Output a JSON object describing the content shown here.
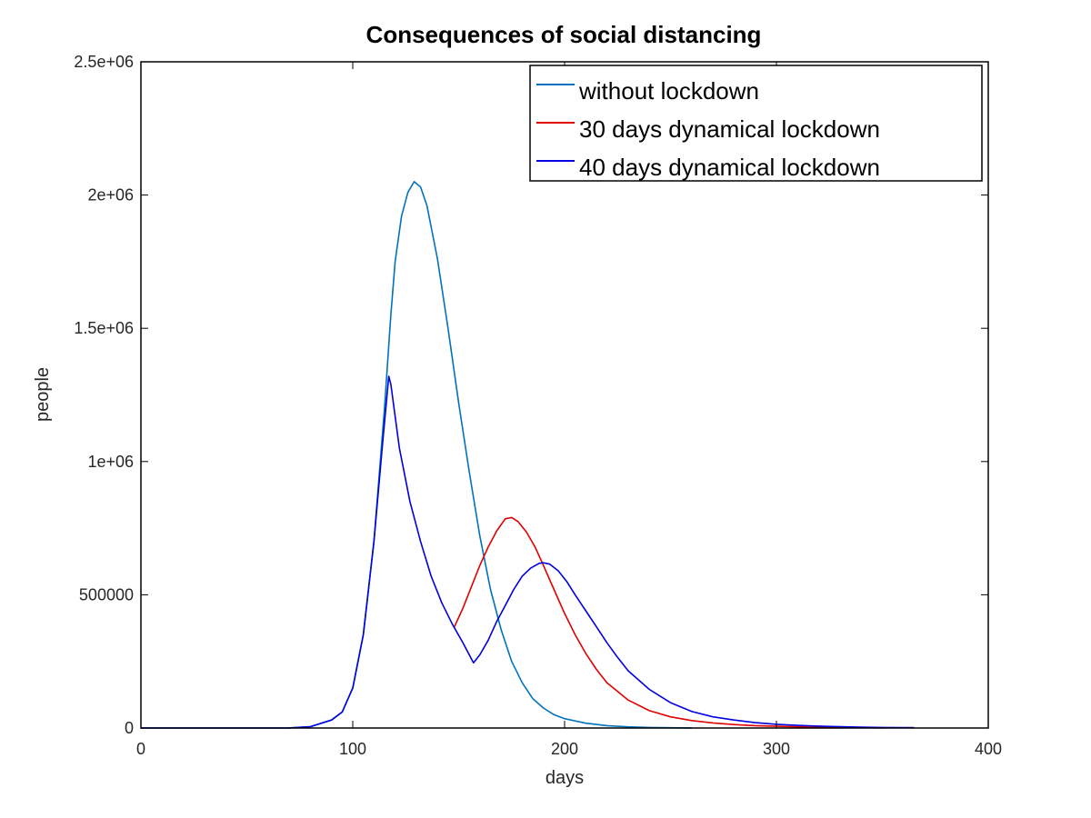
{
  "chart_data": {
    "type": "line",
    "title": "Consequences of social distancing",
    "xlabel": "days",
    "ylabel": "people",
    "xlim": [
      0,
      400
    ],
    "ylim": [
      0,
      2500000
    ],
    "x_ticks": [
      0,
      100,
      200,
      300,
      400
    ],
    "x_tick_labels": [
      "0",
      "100",
      "200",
      "300",
      "400"
    ],
    "y_ticks": [
      0,
      500000,
      1000000,
      1500000,
      2000000,
      2500000
    ],
    "y_tick_labels": [
      "0",
      "500000",
      "1e+06",
      "1.5e+06",
      "2e+06",
      "2.5e+06"
    ],
    "grid": false,
    "legend_position": "top-right",
    "series": [
      {
        "name": "without lockdown",
        "color": "#0072bd",
        "points": [
          [
            0,
            0
          ],
          [
            60,
            0
          ],
          [
            70,
            500
          ],
          [
            80,
            5000
          ],
          [
            90,
            30000
          ],
          [
            95,
            60000
          ],
          [
            100,
            150000
          ],
          [
            105,
            350000
          ],
          [
            110,
            700000
          ],
          [
            115,
            1200000
          ],
          [
            118,
            1550000
          ],
          [
            120,
            1750000
          ],
          [
            123,
            1920000
          ],
          [
            126,
            2010000
          ],
          [
            129,
            2050000
          ],
          [
            132,
            2030000
          ],
          [
            135,
            1960000
          ],
          [
            140,
            1760000
          ],
          [
            145,
            1500000
          ],
          [
            150,
            1220000
          ],
          [
            155,
            960000
          ],
          [
            160,
            720000
          ],
          [
            165,
            520000
          ],
          [
            170,
            370000
          ],
          [
            175,
            250000
          ],
          [
            180,
            170000
          ],
          [
            185,
            110000
          ],
          [
            190,
            75000
          ],
          [
            195,
            50000
          ],
          [
            200,
            35000
          ],
          [
            210,
            18000
          ],
          [
            220,
            9000
          ],
          [
            230,
            4500
          ],
          [
            240,
            2000
          ],
          [
            250,
            1000
          ],
          [
            260,
            500
          ]
        ]
      },
      {
        "name": "30 days dynamical lockdown",
        "color": "#e00000",
        "points": [
          [
            148,
            380000
          ],
          [
            152,
            450000
          ],
          [
            156,
            530000
          ],
          [
            160,
            610000
          ],
          [
            164,
            680000
          ],
          [
            168,
            740000
          ],
          [
            172,
            785000
          ],
          [
            175,
            790000
          ],
          [
            178,
            775000
          ],
          [
            182,
            735000
          ],
          [
            186,
            680000
          ],
          [
            190,
            610000
          ],
          [
            195,
            520000
          ],
          [
            200,
            430000
          ],
          [
            205,
            350000
          ],
          [
            210,
            280000
          ],
          [
            215,
            220000
          ],
          [
            220,
            170000
          ],
          [
            230,
            105000
          ],
          [
            240,
            65000
          ],
          [
            250,
            42000
          ],
          [
            260,
            28000
          ],
          [
            270,
            19000
          ],
          [
            280,
            13000
          ],
          [
            290,
            9000
          ],
          [
            300,
            6500
          ],
          [
            310,
            4500
          ],
          [
            320,
            3000
          ],
          [
            330,
            2000
          ],
          [
            340,
            1200
          ],
          [
            350,
            800
          ]
        ]
      },
      {
        "name": "40 days dynamical lockdown",
        "color": "#0000e0",
        "points": [
          [
            0,
            0
          ],
          [
            60,
            0
          ],
          [
            70,
            500
          ],
          [
            80,
            5000
          ],
          [
            90,
            30000
          ],
          [
            95,
            60000
          ],
          [
            100,
            150000
          ],
          [
            105,
            350000
          ],
          [
            110,
            700000
          ],
          [
            114,
            1060000
          ],
          [
            117,
            1320000
          ],
          [
            118,
            1290000
          ],
          [
            122,
            1050000
          ],
          [
            127,
            850000
          ],
          [
            132,
            700000
          ],
          [
            137,
            570000
          ],
          [
            142,
            470000
          ],
          [
            147,
            390000
          ],
          [
            152,
            320000
          ],
          [
            157,
            245000
          ],
          [
            160,
            275000
          ],
          [
            164,
            330000
          ],
          [
            168,
            400000
          ],
          [
            172,
            460000
          ],
          [
            176,
            520000
          ],
          [
            180,
            570000
          ],
          [
            184,
            600000
          ],
          [
            188,
            618000
          ],
          [
            190,
            620000
          ],
          [
            193,
            615000
          ],
          [
            197,
            590000
          ],
          [
            201,
            550000
          ],
          [
            205,
            500000
          ],
          [
            210,
            440000
          ],
          [
            215,
            380000
          ],
          [
            220,
            320000
          ],
          [
            225,
            265000
          ],
          [
            230,
            215000
          ],
          [
            240,
            145000
          ],
          [
            250,
            95000
          ],
          [
            260,
            62000
          ],
          [
            270,
            42000
          ],
          [
            280,
            30000
          ],
          [
            290,
            20000
          ],
          [
            300,
            14000
          ],
          [
            310,
            10000
          ],
          [
            320,
            7000
          ],
          [
            330,
            5000
          ],
          [
            340,
            3200
          ],
          [
            350,
            2200
          ],
          [
            360,
            1500
          ],
          [
            365,
            1200
          ]
        ]
      }
    ]
  }
}
